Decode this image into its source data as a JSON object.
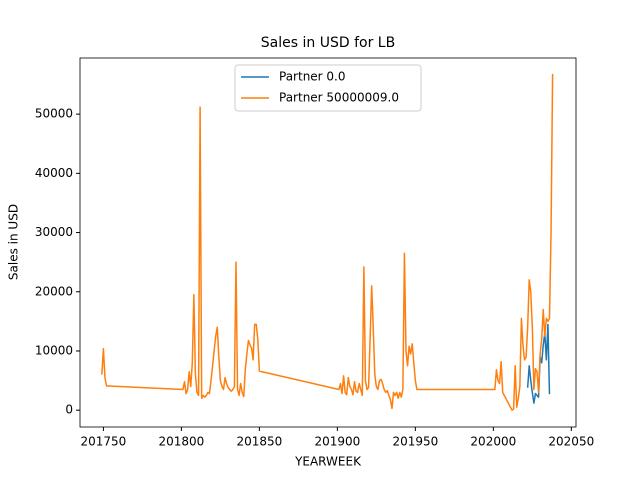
{
  "chart_data": {
    "type": "line",
    "title": "Sales in USD for LB",
    "xlabel": "YEARWEEK",
    "ylabel": "Sales in USD",
    "legend": "upper center",
    "xlim": [
      201735,
      202053
    ],
    "xticks": [
      201750,
      201800,
      201850,
      201900,
      201950,
      202000,
      202050
    ],
    "ylim": [
      -2840,
      59480
    ],
    "yticks": [
      0,
      10000,
      20000,
      30000,
      40000,
      50000
    ],
    "series": [
      {
        "name": "Partner 0.0",
        "color": "#1f77b4",
        "x": [
          202022,
          202023,
          202024,
          202025,
          202026,
          202027,
          202028,
          202029,
          202030,
          202031,
          202032,
          202033,
          202034,
          202035,
          202036
        ],
        "values": [
          3800,
          7500,
          5000,
          3000,
          1200,
          2800,
          2500,
          2200,
          9000,
          8000,
          11000,
          13000,
          8500,
          14500,
          2700
        ]
      },
      {
        "name": "Partner 50000009.0",
        "color": "#ff7f0e",
        "x": [
          201749,
          201750,
          201751,
          201752,
          201801,
          201802,
          201803,
          201804,
          201805,
          201806,
          201807,
          201808,
          201809,
          201810,
          201811,
          201812,
          201813,
          201814,
          201815,
          201816,
          201817,
          201818,
          201819,
          201820,
          201821,
          201822,
          201823,
          201824,
          201825,
          201826,
          201827,
          201828,
          201829,
          201830,
          201831,
          201832,
          201833,
          201834,
          201835,
          201836,
          201837,
          201838,
          201839,
          201840,
          201841,
          201842,
          201843,
          201844,
          201845,
          201846,
          201847,
          201848,
          201849,
          201850,
          201901,
          201902,
          201903,
          201904,
          201905,
          201906,
          201907,
          201908,
          201909,
          201910,
          201911,
          201912,
          201913,
          201914,
          201915,
          201916,
          201917,
          201918,
          201919,
          201920,
          201921,
          201922,
          201923,
          201924,
          201925,
          201926,
          201927,
          201928,
          201929,
          201930,
          201931,
          201932,
          201933,
          201934,
          201935,
          201936,
          201937,
          201938,
          201939,
          201940,
          201941,
          201942,
          201943,
          201944,
          201945,
          201946,
          201947,
          201948,
          201949,
          201950,
          201951,
          202001,
          202002,
          202003,
          202004,
          202005,
          202006,
          202007,
          202008,
          202009,
          202010,
          202011,
          202012,
          202013,
          202014,
          202015,
          202016,
          202017,
          202018,
          202019,
          202020,
          202021,
          202022,
          202023,
          202024,
          202025,
          202026,
          202027,
          202028,
          202029,
          202030,
          202031,
          202032,
          202033,
          202034,
          202035,
          202036,
          202037,
          202038
        ],
        "values": [
          6000,
          10400,
          5500,
          4100,
          3500,
          4800,
          2800,
          3500,
          6500,
          4000,
          8000,
          19500,
          6000,
          3000,
          2500,
          51200,
          2000,
          2500,
          2200,
          2500,
          3000,
          2800,
          5000,
          7500,
          10000,
          12500,
          14000,
          9000,
          5000,
          4000,
          3500,
          5500,
          4500,
          3800,
          3500,
          3200,
          3500,
          4000,
          25000,
          3500,
          2500,
          4500,
          3000,
          2300,
          7000,
          9500,
          11800,
          11000,
          10500,
          8500,
          14500,
          14500,
          12000,
          6600,
          3500,
          4500,
          2800,
          5800,
          3000,
          2600,
          5500,
          4000,
          3500,
          2600,
          4800,
          3200,
          3000,
          4500,
          3500,
          2500,
          24200,
          5000,
          3500,
          3800,
          12000,
          21000,
          14000,
          6000,
          4000,
          3500,
          5000,
          5200,
          4500,
          3500,
          3000,
          3300,
          2500,
          1800,
          300,
          3000,
          2500,
          3000,
          2000,
          3000,
          2200,
          3500,
          26500,
          10000,
          7500,
          10800,
          9500,
          11200,
          8000,
          5000,
          3500,
          3500,
          6800,
          5000,
          4500,
          8200,
          3000,
          2500,
          2000,
          1500,
          1000,
          500,
          0,
          200,
          7500,
          500,
          2000,
          4000,
          15500,
          11000,
          8500,
          9000,
          14000,
          22000,
          20000,
          14000,
          3500,
          7000,
          6500,
          3000,
          9500,
          12000,
          17000,
          12500,
          15500,
          15000,
          15500,
          30000,
          56800
        ]
      }
    ]
  }
}
